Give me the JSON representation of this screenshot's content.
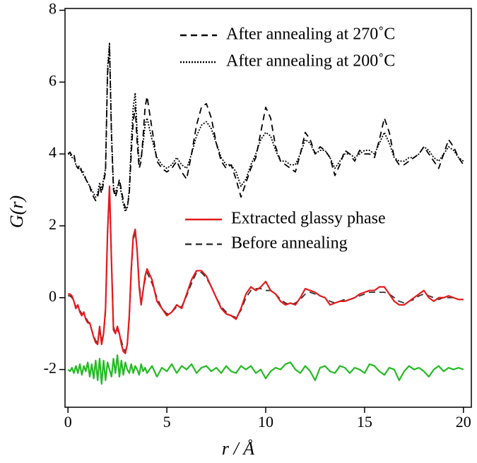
{
  "chart_data": {
    "type": "line",
    "xlabel": "r / Å",
    "ylabel": "G(r)",
    "xlim": [
      -0.15,
      20.4
    ],
    "ylim": [
      -3.05,
      8.05
    ],
    "xticks": [
      0,
      5,
      10,
      15,
      20
    ],
    "yticks": [
      -2,
      0,
      2,
      4,
      6,
      8
    ],
    "x": [
      0,
      0.1,
      0.2,
      0.3,
      0.4,
      0.5,
      0.6,
      0.7,
      0.8,
      0.9,
      1.0,
      1.1,
      1.2,
      1.3,
      1.4,
      1.5,
      1.6,
      1.7,
      1.8,
      1.9,
      2.0,
      2.1,
      2.2,
      2.3,
      2.4,
      2.5,
      2.6,
      2.7,
      2.8,
      2.9,
      3.0,
      3.1,
      3.2,
      3.3,
      3.4,
      3.5,
      3.6,
      3.7,
      3.8,
      3.9,
      4.0,
      4.25,
      4.5,
      4.75,
      5.0,
      5.25,
      5.5,
      5.75,
      6.0,
      6.25,
      6.5,
      6.75,
      7.0,
      7.25,
      7.5,
      7.75,
      8.0,
      8.25,
      8.5,
      8.75,
      9.0,
      9.25,
      9.5,
      9.75,
      10.0,
      10.25,
      10.5,
      10.75,
      11.0,
      11.25,
      11.5,
      11.75,
      12.0,
      12.25,
      12.5,
      12.75,
      13.0,
      13.25,
      13.5,
      13.75,
      14.0,
      14.25,
      14.5,
      14.75,
      15.0,
      15.25,
      15.5,
      15.75,
      16.0,
      16.25,
      16.5,
      16.75,
      17.0,
      17.25,
      17.5,
      17.75,
      18.0,
      18.25,
      18.5,
      18.75,
      19.0,
      19.25,
      19.5,
      19.75,
      20.0
    ],
    "series": [
      {
        "name": "After annealing at 270˚C",
        "color": "#000000",
        "style": "dashed",
        "values": [
          4.0,
          4.05,
          3.95,
          4.0,
          3.7,
          3.6,
          3.7,
          3.5,
          3.5,
          3.3,
          3.2,
          3.1,
          2.9,
          2.8,
          2.7,
          2.8,
          3.1,
          2.9,
          3.2,
          3.5,
          6.2,
          7.0,
          4.5,
          3.0,
          2.8,
          3.0,
          3.3,
          3.0,
          2.7,
          2.5,
          2.5,
          2.9,
          4.0,
          4.9,
          5.3,
          4.3,
          3.6,
          3.8,
          4.5,
          5.3,
          5.6,
          4.7,
          3.8,
          3.6,
          3.5,
          3.6,
          3.8,
          3.5,
          3.3,
          4.0,
          4.8,
          5.3,
          5.4,
          5.0,
          4.3,
          3.8,
          3.6,
          3.7,
          3.3,
          2.8,
          3.2,
          3.6,
          3.9,
          4.6,
          5.3,
          5.0,
          4.2,
          3.8,
          3.7,
          3.6,
          3.5,
          4.0,
          4.6,
          4.4,
          4.0,
          4.2,
          4.1,
          3.9,
          3.4,
          3.7,
          4.1,
          4.0,
          3.8,
          4.1,
          4.0,
          4.0,
          3.9,
          4.4,
          5.0,
          4.6,
          3.9,
          3.7,
          3.7,
          3.8,
          3.9,
          4.0,
          4.2,
          4.0,
          3.8,
          3.6,
          4.0,
          4.4,
          4.2,
          3.9,
          3.7
        ]
      },
      {
        "name": "After annealing at 200˚C",
        "color": "#000000",
        "style": "dotted",
        "values": [
          4.0,
          4.0,
          3.9,
          3.9,
          3.7,
          3.6,
          3.6,
          3.5,
          3.4,
          3.3,
          3.2,
          3.1,
          3.0,
          2.9,
          2.8,
          2.9,
          3.2,
          3.0,
          3.3,
          3.6,
          6.4,
          7.1,
          4.6,
          3.1,
          2.9,
          3.1,
          3.2,
          2.9,
          2.6,
          2.4,
          2.5,
          3.0,
          4.3,
          5.3,
          5.7,
          4.6,
          3.8,
          3.9,
          4.3,
          4.8,
          5.0,
          4.4,
          3.9,
          3.7,
          3.6,
          3.7,
          3.9,
          3.7,
          3.6,
          4.0,
          4.5,
          4.8,
          4.9,
          4.7,
          4.3,
          3.9,
          3.7,
          3.7,
          3.5,
          3.1,
          3.3,
          3.7,
          4.0,
          4.4,
          4.6,
          4.5,
          4.1,
          3.8,
          3.8,
          3.7,
          3.7,
          4.0,
          4.4,
          4.3,
          4.0,
          4.1,
          4.1,
          3.9,
          3.6,
          3.8,
          4.0,
          4.0,
          3.9,
          4.0,
          4.1,
          4.1,
          4.0,
          4.3,
          4.6,
          4.3,
          3.9,
          3.8,
          3.8,
          3.9,
          3.9,
          4.0,
          4.2,
          4.1,
          3.9,
          3.8,
          4.0,
          4.2,
          4.1,
          3.9,
          3.8
        ]
      },
      {
        "name": "Extracted glassy phase",
        "color": "#e41a1c",
        "style": "solid",
        "values": [
          0.1,
          0.1,
          0.05,
          -0.1,
          -0.3,
          -0.2,
          -0.4,
          -0.5,
          -0.4,
          -0.6,
          -0.7,
          -0.7,
          -0.9,
          -1.1,
          -1.25,
          -1.3,
          -0.8,
          -1.3,
          -1.0,
          -0.3,
          1.8,
          3.1,
          1.0,
          -0.9,
          -1.0,
          -0.8,
          -1.0,
          -1.3,
          -1.5,
          -1.55,
          -1.3,
          -0.5,
          0.8,
          1.7,
          1.9,
          1.3,
          0.3,
          -0.2,
          0.2,
          0.6,
          0.8,
          0.5,
          -0.1,
          -0.3,
          -0.5,
          -0.4,
          -0.2,
          -0.3,
          0.1,
          0.5,
          0.75,
          0.75,
          0.6,
          0.3,
          0.0,
          -0.3,
          -0.45,
          -0.5,
          -0.6,
          -0.3,
          0.1,
          0.3,
          0.2,
          0.3,
          0.45,
          0.2,
          0.1,
          -0.1,
          -0.2,
          -0.15,
          -0.2,
          0.0,
          0.25,
          0.2,
          0.15,
          0.05,
          0.0,
          -0.2,
          -0.15,
          -0.1,
          -0.1,
          -0.05,
          0.0,
          0.1,
          0.15,
          0.2,
          0.2,
          0.3,
          0.3,
          0.1,
          -0.1,
          -0.2,
          -0.2,
          -0.1,
          0.0,
          0.1,
          0.2,
          0.0,
          -0.1,
          0.0,
          0.0,
          0.05,
          0.0,
          -0.05,
          -0.05
        ]
      },
      {
        "name": "Before annealing",
        "color": "#333333",
        "style": "dashed",
        "values": [
          0.05,
          0.05,
          0.0,
          -0.1,
          -0.25,
          -0.25,
          -0.35,
          -0.45,
          -0.45,
          -0.55,
          -0.65,
          -0.75,
          -0.9,
          -1.05,
          -1.2,
          -1.25,
          -0.9,
          -1.2,
          -1.0,
          -0.4,
          1.7,
          3.0,
          1.1,
          -0.8,
          -1.0,
          -0.9,
          -1.0,
          -1.2,
          -1.4,
          -1.5,
          -1.3,
          -0.6,
          0.7,
          1.6,
          1.85,
          1.3,
          0.4,
          -0.1,
          0.2,
          0.5,
          0.7,
          0.4,
          0.0,
          -0.3,
          -0.45,
          -0.4,
          -0.25,
          -0.25,
          0.05,
          0.4,
          0.7,
          0.7,
          0.55,
          0.3,
          0.0,
          -0.25,
          -0.4,
          -0.5,
          -0.55,
          -0.35,
          0.0,
          0.2,
          0.25,
          0.25,
          0.2,
          0.2,
          0.1,
          -0.05,
          -0.15,
          -0.2,
          -0.15,
          -0.05,
          0.1,
          0.15,
          0.1,
          0.05,
          0.0,
          -0.1,
          -0.15,
          -0.1,
          -0.05,
          -0.05,
          0.0,
          0.05,
          0.1,
          0.15,
          0.15,
          0.15,
          0.15,
          0.1,
          0.0,
          -0.1,
          -0.15,
          -0.1,
          -0.05,
          0.05,
          0.1,
          0.05,
          0.0,
          -0.05,
          0.0,
          0.0,
          0.0,
          -0.05,
          -0.05
        ]
      },
      {
        "color": "#22bb22",
        "style": "solid",
        "values": [
          -2.0,
          -2.05,
          -1.95,
          -2.1,
          -1.9,
          -2.1,
          -1.85,
          -2.15,
          -1.9,
          -2.05,
          -1.8,
          -2.2,
          -1.85,
          -2.25,
          -1.75,
          -2.3,
          -1.7,
          -2.4,
          -1.75,
          -2.3,
          -1.8,
          -2.0,
          -2.2,
          -1.7,
          -2.1,
          -1.6,
          -2.2,
          -1.75,
          -2.15,
          -1.8,
          -2.0,
          -2.1,
          -1.85,
          -2.1,
          -1.9,
          -2.0,
          -2.15,
          -1.85,
          -2.05,
          -1.95,
          -2.1,
          -1.9,
          -2.2,
          -1.95,
          -2.05,
          -1.85,
          -2.1,
          -1.9,
          -2.0,
          -1.85,
          -2.1,
          -1.95,
          -1.9,
          -2.05,
          -1.95,
          -2.1,
          -1.9,
          -2.05,
          -2.1,
          -1.9,
          -2.0,
          -1.9,
          -2.1,
          -2.0,
          -2.25,
          -2.05,
          -1.95,
          -2.0,
          -1.85,
          -1.8,
          -2.0,
          -2.1,
          -1.9,
          -2.05,
          -2.3,
          -1.95,
          -1.9,
          -2.05,
          -2.1,
          -1.9,
          -1.95,
          -2.1,
          -1.95,
          -2.0,
          -2.1,
          -1.85,
          -1.9,
          -2.05,
          -2.15,
          -1.95,
          -2.0,
          -2.3,
          -2.05,
          -1.9,
          -2.0,
          -1.95,
          -2.05,
          -2.2,
          -2.0,
          -1.9,
          -2.05,
          -1.95,
          -2.0,
          -1.95,
          -2.0
        ]
      }
    ]
  }
}
